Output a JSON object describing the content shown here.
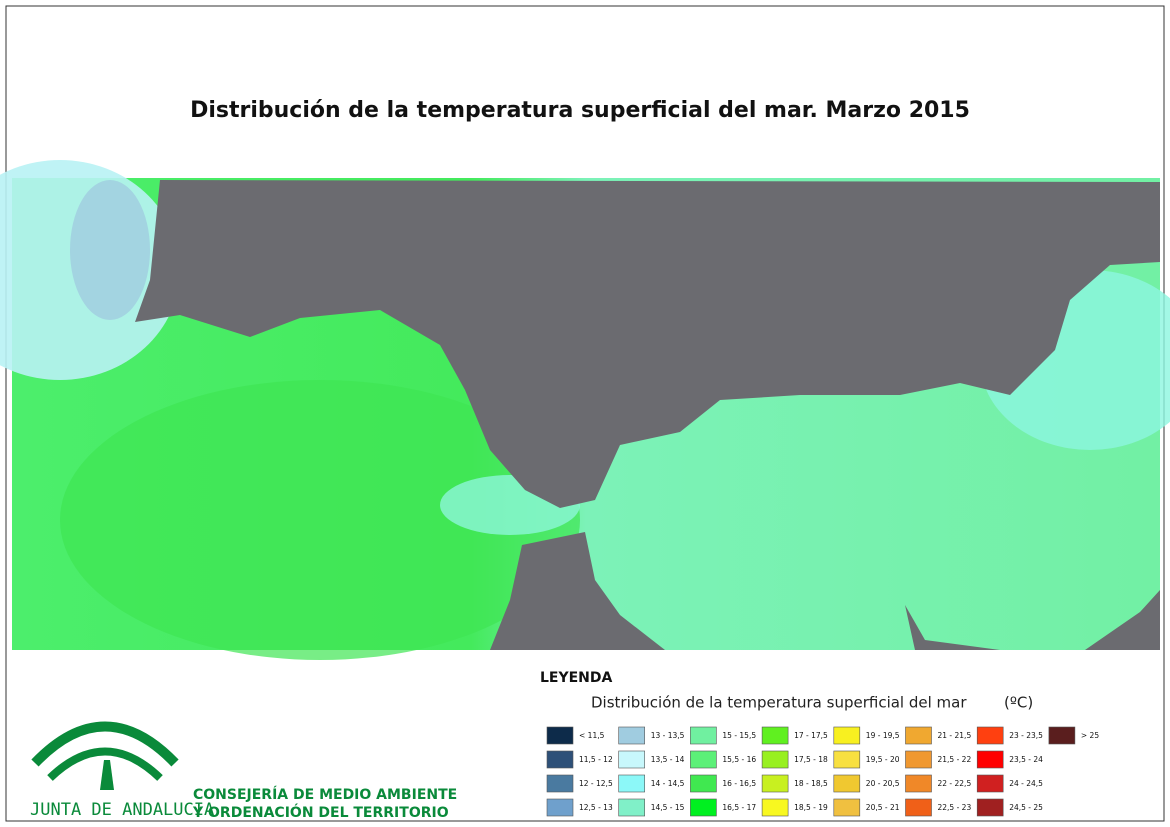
{
  "title": "Distribución de la temperatura superficial del mar. Marzo 2015",
  "legend": {
    "heading": "LEYENDA",
    "title": "Distribución de la temperatura superficial del mar",
    "unit": "(ºC)",
    "items": [
      {
        "label": "< 11,5",
        "color": "#0d2b4a"
      },
      {
        "label": "11,5 - 12",
        "color": "#2e5078"
      },
      {
        "label": "12 - 12,5",
        "color": "#4a7aa0"
      },
      {
        "label": "12,5 - 13",
        "color": "#6fa0cc"
      },
      {
        "label": "13 - 13,5",
        "color": "#a0cce0"
      },
      {
        "label": "13,5 - 14",
        "color": "#c8f8fc"
      },
      {
        "label": "14 - 14,5",
        "color": "#8cf8f8"
      },
      {
        "label": "14,5 - 15",
        "color": "#80f0c8"
      },
      {
        "label": "15 - 15,5",
        "color": "#70f0a0"
      },
      {
        "label": "15,5 - 16",
        "color": "#5cf078"
      },
      {
        "label": "16 - 16,5",
        "color": "#40e850"
      },
      {
        "label": "16,5 - 17",
        "color": "#00f020"
      },
      {
        "label": "17 - 17,5",
        "color": "#60f020"
      },
      {
        "label": "17,5 - 18",
        "color": "#98f020"
      },
      {
        "label": "18 - 18,5",
        "color": "#c8f020"
      },
      {
        "label": "18,5 - 19",
        "color": "#f8f820"
      },
      {
        "label": "19 - 19,5",
        "color": "#f8f020"
      },
      {
        "label": "19,5 - 20",
        "color": "#f8e040"
      },
      {
        "label": "20 - 20,5",
        "color": "#f0c830"
      },
      {
        "label": "20,5 - 21",
        "color": "#f0c040"
      },
      {
        "label": "21 - 21,5",
        "color": "#f0a830"
      },
      {
        "label": "21,5 - 22",
        "color": "#f09830"
      },
      {
        "label": "22 - 22,5",
        "color": "#f08828"
      },
      {
        "label": "22,5 - 23",
        "color": "#f06018"
      },
      {
        "label": "23 - 23,5",
        "color": "#ff4010"
      },
      {
        "label": "23,5 - 24",
        "color": "#ff0000"
      },
      {
        "label": "24 - 24,5",
        "color": "#d02020"
      },
      {
        "label": "24,5 - 25",
        "color": "#a02020"
      },
      {
        "label": "> 25",
        "color": "#5a1e1e"
      }
    ]
  },
  "logo": {
    "name": "JUNTA DE ANDALUCIA",
    "line1": "CONSEJERÍA DE MEDIO AMBIENTE",
    "line2": "Y ORDENACIÓN DEL TERRITORIO"
  }
}
